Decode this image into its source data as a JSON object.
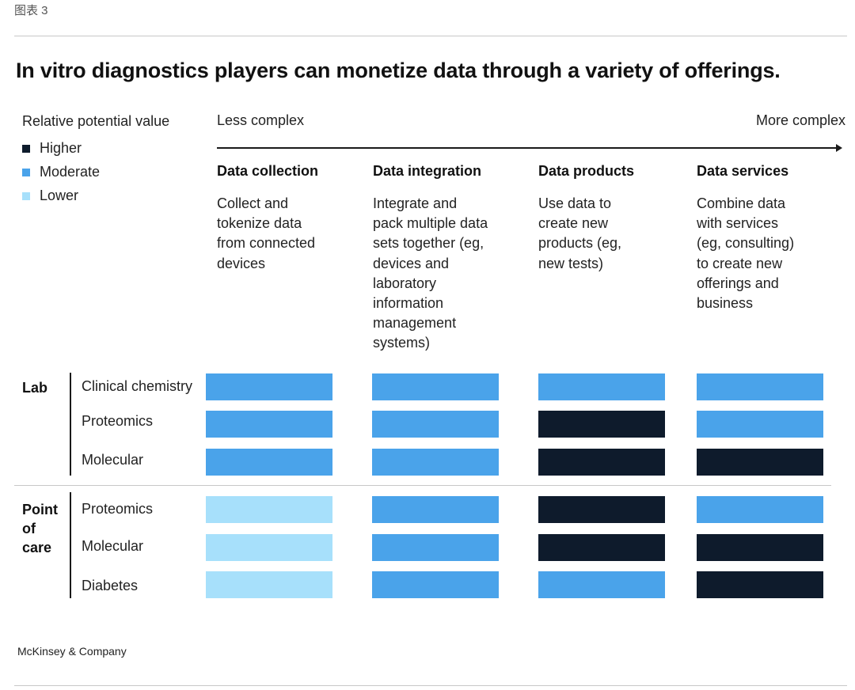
{
  "exhibit_label": "图表 3",
  "title": "In vitro diagnostics players can monetize data through a variety of offerings.",
  "legend": {
    "title": "Relative potential value",
    "items": [
      {
        "label": "Higher",
        "color": "#0e1b2c"
      },
      {
        "label": "Moderate",
        "color": "#4aa3ea"
      },
      {
        "label": "Lower",
        "color": "#a7e0fb"
      }
    ]
  },
  "axis": {
    "left_label": "Less complex",
    "right_label": "More complex"
  },
  "columns": [
    {
      "title": "Data collection",
      "description": [
        "Collect and",
        "tokenize data",
        "from connected",
        "devices"
      ]
    },
    {
      "title": "Data integration",
      "description": [
        "Integrate and",
        "pack multiple data",
        "sets together (eg,",
        "devices and",
        "laboratory",
        "information",
        "management",
        "systems)"
      ]
    },
    {
      "title": "Data products",
      "description": [
        "Use data to",
        "create new",
        "products (eg,",
        "new tests)"
      ]
    },
    {
      "title": "Data services",
      "description": [
        "Combine data",
        "with services",
        "(eg, consulting)",
        "to create new",
        "offerings and",
        "business"
      ]
    }
  ],
  "chart_data": {
    "type": "heatmap",
    "title": "In vitro diagnostics players can monetize data through a variety of offerings.",
    "x_categories": [
      "Data collection",
      "Data integration",
      "Data products",
      "Data services"
    ],
    "scale": [
      "Lower",
      "Moderate",
      "Higher"
    ],
    "groups": [
      {
        "name": "Lab",
        "rows": [
          {
            "label": "Clinical chemistry",
            "values": [
              "Moderate",
              "Moderate",
              "Moderate",
              "Moderate"
            ]
          },
          {
            "label": "Proteomics",
            "values": [
              "Moderate",
              "Moderate",
              "Higher",
              "Moderate"
            ]
          },
          {
            "label": "Molecular",
            "values": [
              "Moderate",
              "Moderate",
              "Higher",
              "Higher"
            ]
          }
        ]
      },
      {
        "name": "Point of care",
        "name_lines": [
          "Point",
          "of",
          "care"
        ],
        "rows": [
          {
            "label": "Proteomics",
            "values": [
              "Lower",
              "Moderate",
              "Higher",
              "Moderate"
            ]
          },
          {
            "label": "Molecular",
            "values": [
              "Lower",
              "Moderate",
              "Higher",
              "Higher"
            ]
          },
          {
            "label": "Diabetes",
            "values": [
              "Lower",
              "Moderate",
              "Moderate",
              "Higher"
            ]
          }
        ]
      }
    ]
  },
  "source": "McKinsey & Company"
}
